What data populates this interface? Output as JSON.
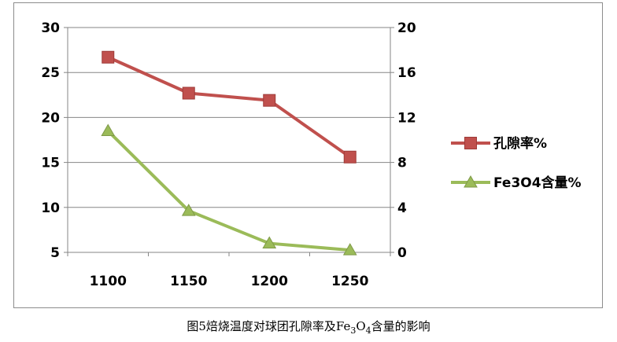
{
  "chart_data": {
    "type": "line",
    "categories": [
      "1100",
      "1150",
      "1200",
      "1250"
    ],
    "series": [
      {
        "name": "孔隙率%",
        "axis": "left",
        "color": "#c0504d",
        "marker": "square",
        "values": [
          26.7,
          22.7,
          21.9,
          15.6
        ]
      },
      {
        "name": "Fe3O4含量%",
        "axis": "right",
        "color": "#9bbb59",
        "marker": "triangle",
        "values": [
          10.8,
          3.7,
          0.8,
          0.2
        ]
      }
    ],
    "y_left": {
      "min": 5,
      "max": 30,
      "ticks": [
        "5",
        "10",
        "15",
        "20",
        "25",
        "30"
      ]
    },
    "y_right": {
      "min": 0,
      "max": 20,
      "ticks": [
        "0",
        "4",
        "8",
        "12",
        "16",
        "20"
      ]
    },
    "grid": "horizontal",
    "legend_position": "right"
  },
  "caption": {
    "prefix": "图5焙烧温度对球团孔隙率及Fe",
    "sub1": "3",
    "mid": "O",
    "sub2": "4",
    "suffix": "含量的影响"
  }
}
